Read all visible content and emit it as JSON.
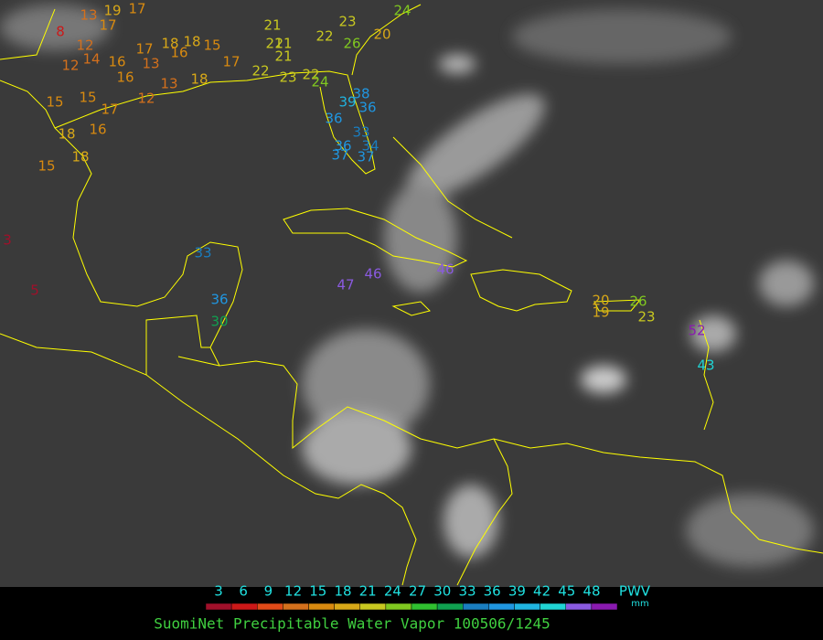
{
  "map": {
    "stations": [
      8,
      13,
      19,
      17,
      17,
      12,
      12,
      14,
      16,
      17,
      18,
      18,
      15,
      16,
      13,
      16,
      13,
      12,
      18,
      17,
      15,
      15,
      17,
      16,
      18,
      18,
      15,
      3,
      5,
      21,
      21,
      21,
      21,
      22,
      23,
      26,
      20,
      24,
      22,
      23,
      22,
      24,
      39,
      38,
      36,
      36,
      33,
      34,
      36,
      37,
      37,
      33,
      36,
      30,
      47,
      46,
      46,
      20,
      19,
      26,
      23,
      52,
      43
    ],
    "colorbar": {
      "ticks": [
        3,
        6,
        9,
        12,
        15,
        18,
        21,
        24,
        27,
        30,
        33,
        36,
        39,
        42,
        45,
        48
      ],
      "colors": [
        "#a0102a",
        "#cc1818",
        "#e04a18",
        "#d4701c",
        "#d88a10",
        "#d8a818",
        "#c8c820",
        "#80c820",
        "#30c030",
        "#10a050",
        "#1a7ec0",
        "#2096e0",
        "#20b4e0",
        "#20d4d4",
        "#8a5ae0",
        "#8a1ab0"
      ],
      "label": "PWV",
      "unit": "mm"
    },
    "caption": "SuomiNet Precipitable Water Vapor 100506/1245"
  }
}
